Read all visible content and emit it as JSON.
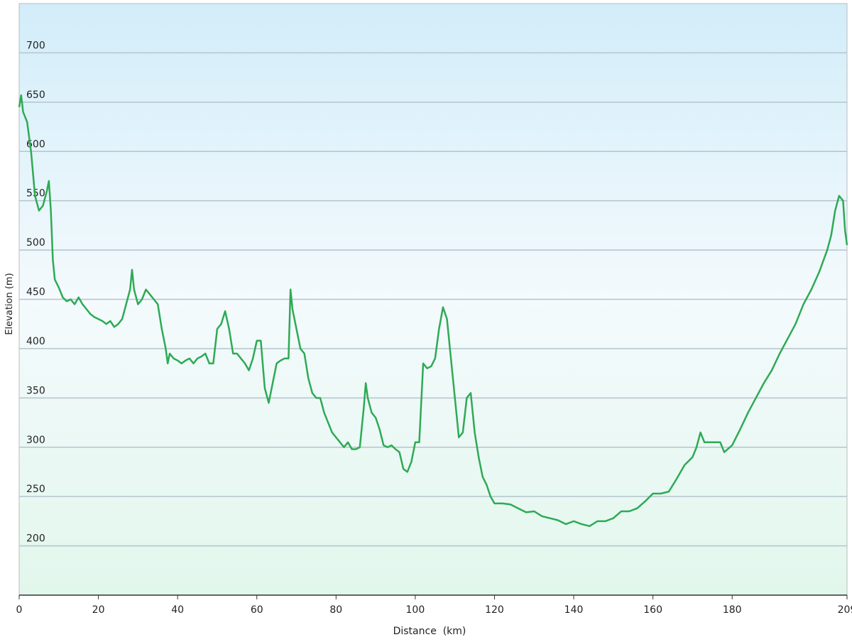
{
  "chart_data": {
    "type": "line",
    "x_label": "Distance  (km)",
    "y_label": "Elevation (m)",
    "xlim": [
      0,
      209
    ],
    "ylim": [
      150,
      750
    ],
    "xticks": [
      0,
      20,
      40,
      60,
      80,
      100,
      120,
      140,
      160,
      180,
      209
    ],
    "yticks": [
      200,
      250,
      300,
      350,
      400,
      450,
      500,
      550,
      600,
      650,
      700
    ],
    "grid": true,
    "series": [
      {
        "color": "#2eaa55",
        "x": [
          0,
          0.5,
          1,
          2,
          3,
          4,
          5,
          6,
          7,
          7.5,
          8,
          8.5,
          9,
          10,
          11,
          12,
          13,
          14,
          15,
          16,
          17,
          18,
          19,
          20,
          21,
          22,
          23,
          24,
          25,
          26,
          27,
          28,
          28.5,
          29,
          30,
          31,
          32,
          33,
          34,
          35,
          36,
          37,
          37.5,
          38,
          39,
          40,
          41,
          42,
          43,
          44,
          45,
          46,
          47,
          48,
          49,
          50,
          51,
          52,
          53,
          54,
          55,
          56,
          57,
          58,
          59,
          60,
          61,
          62,
          63,
          64,
          65,
          66,
          67,
          68,
          68.5,
          69,
          70,
          71,
          72,
          73,
          74,
          75,
          76,
          77,
          78,
          79,
          80,
          81,
          82,
          83,
          84,
          85,
          86,
          87,
          87.5,
          88,
          89,
          90,
          91,
          92,
          93,
          94,
          95,
          96,
          97,
          98,
          99,
          100,
          101,
          102,
          103,
          104,
          105,
          106,
          107,
          108,
          109,
          110,
          111,
          112,
          113,
          114,
          115,
          116,
          117,
          118,
          119,
          120,
          122,
          124,
          126,
          128,
          130,
          132,
          134,
          136,
          138,
          140,
          142,
          144,
          146,
          148,
          150,
          152,
          154,
          156,
          158,
          160,
          162,
          164,
          166,
          168,
          170,
          171,
          172,
          173,
          175,
          177,
          178,
          180,
          182,
          184,
          186,
          188,
          190,
          192,
          194,
          196,
          198,
          200,
          202,
          204,
          205,
          206,
          207,
          208,
          208.5,
          209
        ],
        "values": [
          645,
          657,
          640,
          630,
          600,
          555,
          540,
          545,
          560,
          570,
          540,
          490,
          470,
          462,
          452,
          448,
          450,
          445,
          452,
          445,
          440,
          435,
          432,
          430,
          428,
          425,
          428,
          422,
          425,
          430,
          445,
          460,
          480,
          460,
          445,
          450,
          460,
          455,
          450,
          445,
          420,
          400,
          385,
          395,
          390,
          388,
          385,
          388,
          390,
          385,
          390,
          392,
          395,
          385,
          385,
          420,
          425,
          438,
          420,
          395,
          395,
          390,
          385,
          378,
          390,
          408,
          408,
          360,
          345,
          365,
          385,
          388,
          390,
          390,
          460,
          440,
          420,
          400,
          395,
          370,
          355,
          350,
          350,
          335,
          325,
          315,
          310,
          305,
          300,
          305,
          298,
          298,
          300,
          340,
          365,
          350,
          335,
          330,
          318,
          302,
          300,
          302,
          298,
          295,
          278,
          275,
          285,
          305,
          305,
          385,
          380,
          382,
          390,
          420,
          442,
          430,
          390,
          350,
          310,
          315,
          350,
          355,
          315,
          290,
          270,
          262,
          250,
          243,
          243,
          242,
          238,
          234,
          235,
          230,
          228,
          226,
          222,
          225,
          222,
          220,
          225,
          225,
          228,
          235,
          235,
          238,
          245,
          253,
          253,
          255,
          268,
          282,
          290,
          300,
          315,
          305,
          305,
          305,
          295,
          302,
          318,
          335,
          350,
          365,
          378,
          395,
          410,
          425,
          445,
          460,
          478,
          500,
          515,
          540,
          555,
          550,
          520,
          505
        ]
      }
    ]
  }
}
